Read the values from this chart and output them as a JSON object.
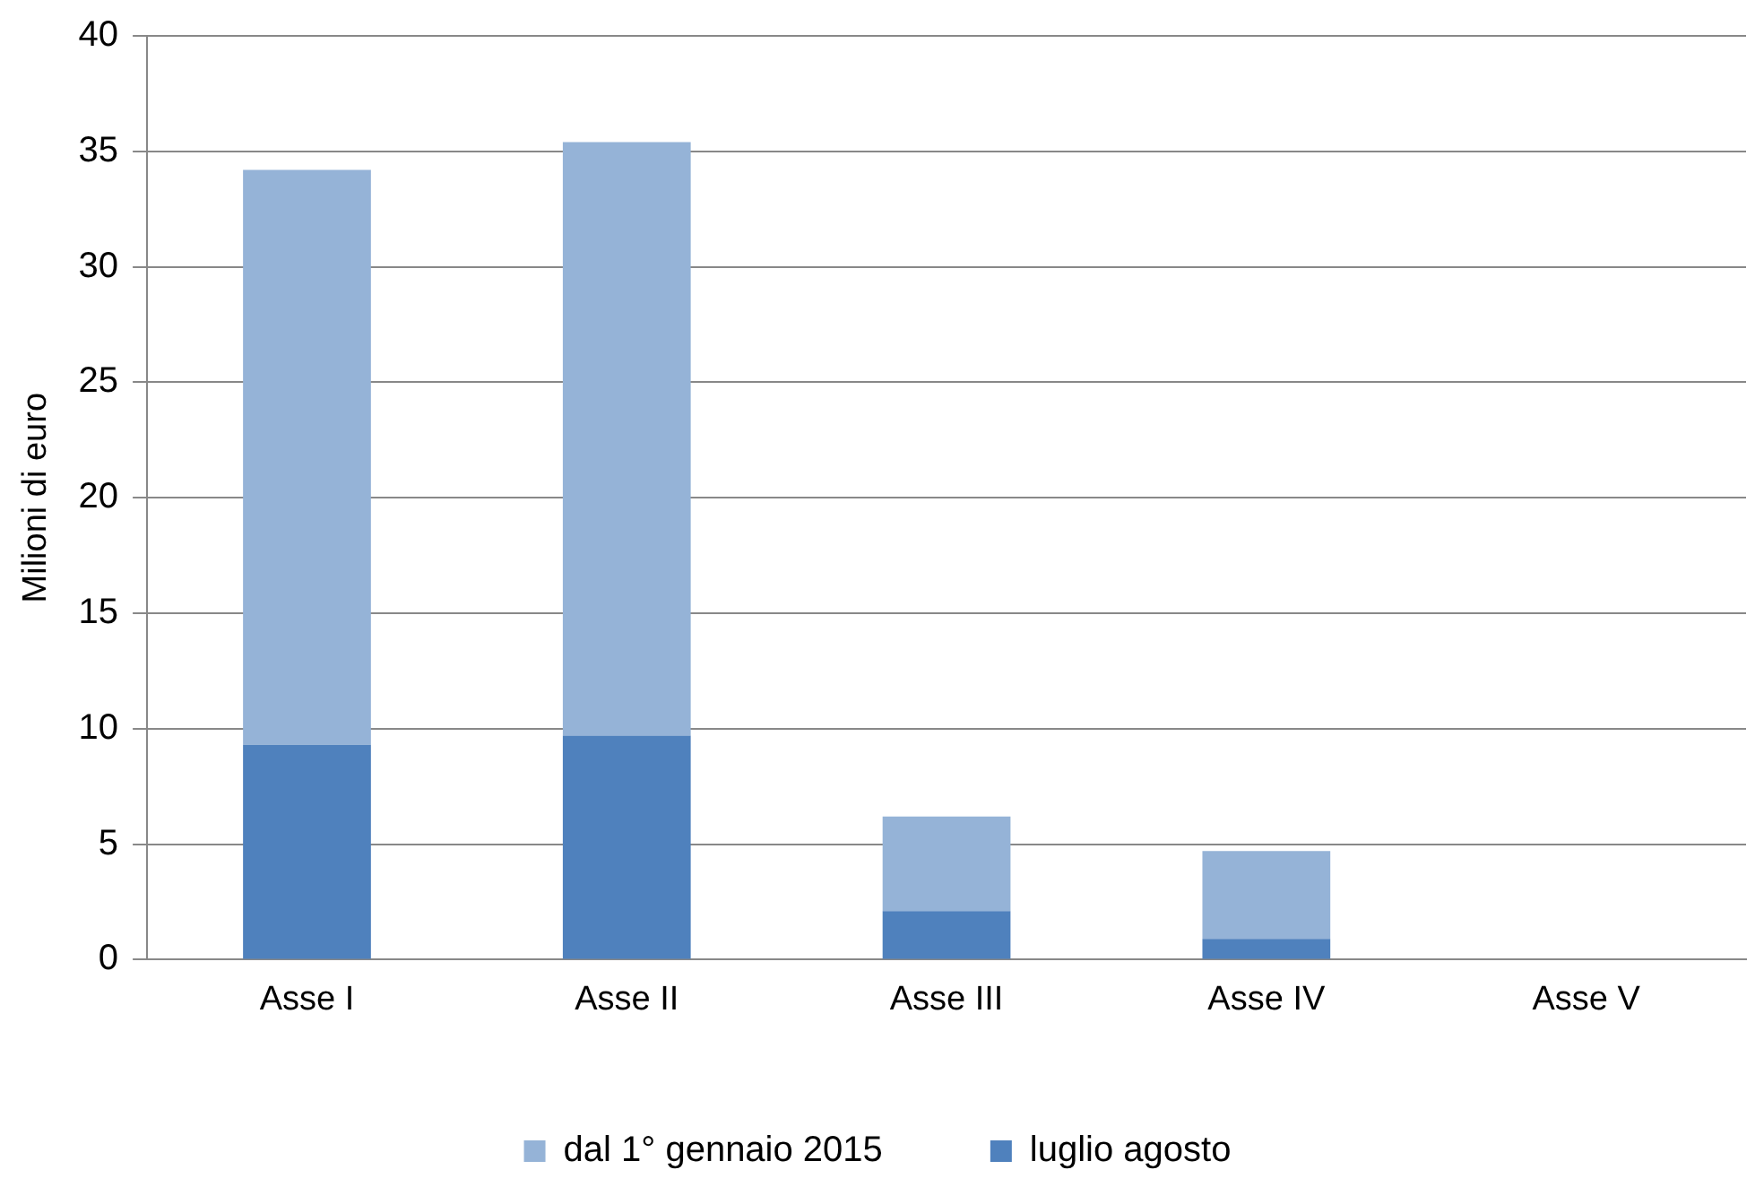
{
  "chart_data": {
    "type": "bar",
    "stacked": true,
    "ylabel": "Milioni di euro",
    "categories": [
      "Asse I",
      "Asse II",
      "Asse III",
      "Asse IV",
      "Asse V"
    ],
    "series": [
      {
        "name": "luglio agosto",
        "color": "#4f81bd",
        "values": [
          9.3,
          9.7,
          2.1,
          0.9,
          0
        ]
      },
      {
        "name": "dal 1° gennaio 2015",
        "color": "#95b3d7",
        "values": [
          24.9,
          25.7,
          4.1,
          3.8,
          0
        ]
      }
    ],
    "ylim": [
      0,
      40
    ],
    "yticks": [
      0,
      5,
      10,
      15,
      20,
      25,
      30,
      35,
      40
    ],
    "grid": "y",
    "legend": "bottom"
  }
}
